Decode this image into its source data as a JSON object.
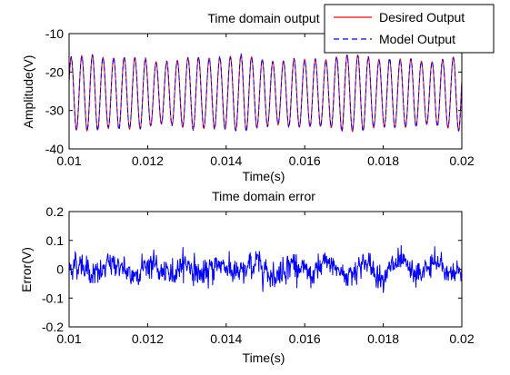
{
  "chart_data": [
    {
      "type": "line",
      "title": "Time domain output",
      "xlabel": "Time(s)",
      "ylabel": "Amplitude(V)",
      "xlim": [
        0.01,
        0.02
      ],
      "ylim": [
        -40,
        -10
      ],
      "xticks": [
        "0.01",
        "0.012",
        "0.014",
        "0.016",
        "0.018",
        "0.02"
      ],
      "yticks": [
        "-10",
        "-20",
        "-30",
        "-40"
      ],
      "grid": false,
      "legend_position": "top-right",
      "oscillation": {
        "cycles": 37,
        "mean": -25.5,
        "amplitude": 9.0,
        "amplitude_variation": 0.6,
        "y_start": -22.5,
        "y_end": -17.5
      },
      "series": [
        {
          "name": "Desired Output",
          "color": "#ff0000",
          "line_style": "solid"
        },
        {
          "name": "Model Output",
          "color": "#0000ff",
          "line_style": "dashed"
        }
      ]
    },
    {
      "type": "line",
      "title": "Time domain error",
      "xlabel": "Time(s)",
      "ylabel": "Error(V)",
      "xlim": [
        0.01,
        0.02
      ],
      "ylim": [
        -0.2,
        0.2
      ],
      "xticks": [
        "0.01",
        "0.012",
        "0.014",
        "0.016",
        "0.018",
        "0.02"
      ],
      "yticks": [
        "0.2",
        "0.1",
        "0",
        "-0.1",
        "-0.2"
      ],
      "grid": false,
      "noise": {
        "points": 900,
        "std": 0.035,
        "peak_max": 0.115,
        "peak_min": -0.125
      },
      "series": [
        {
          "name": "",
          "color": "#0000ff",
          "line_style": "solid"
        }
      ]
    }
  ]
}
